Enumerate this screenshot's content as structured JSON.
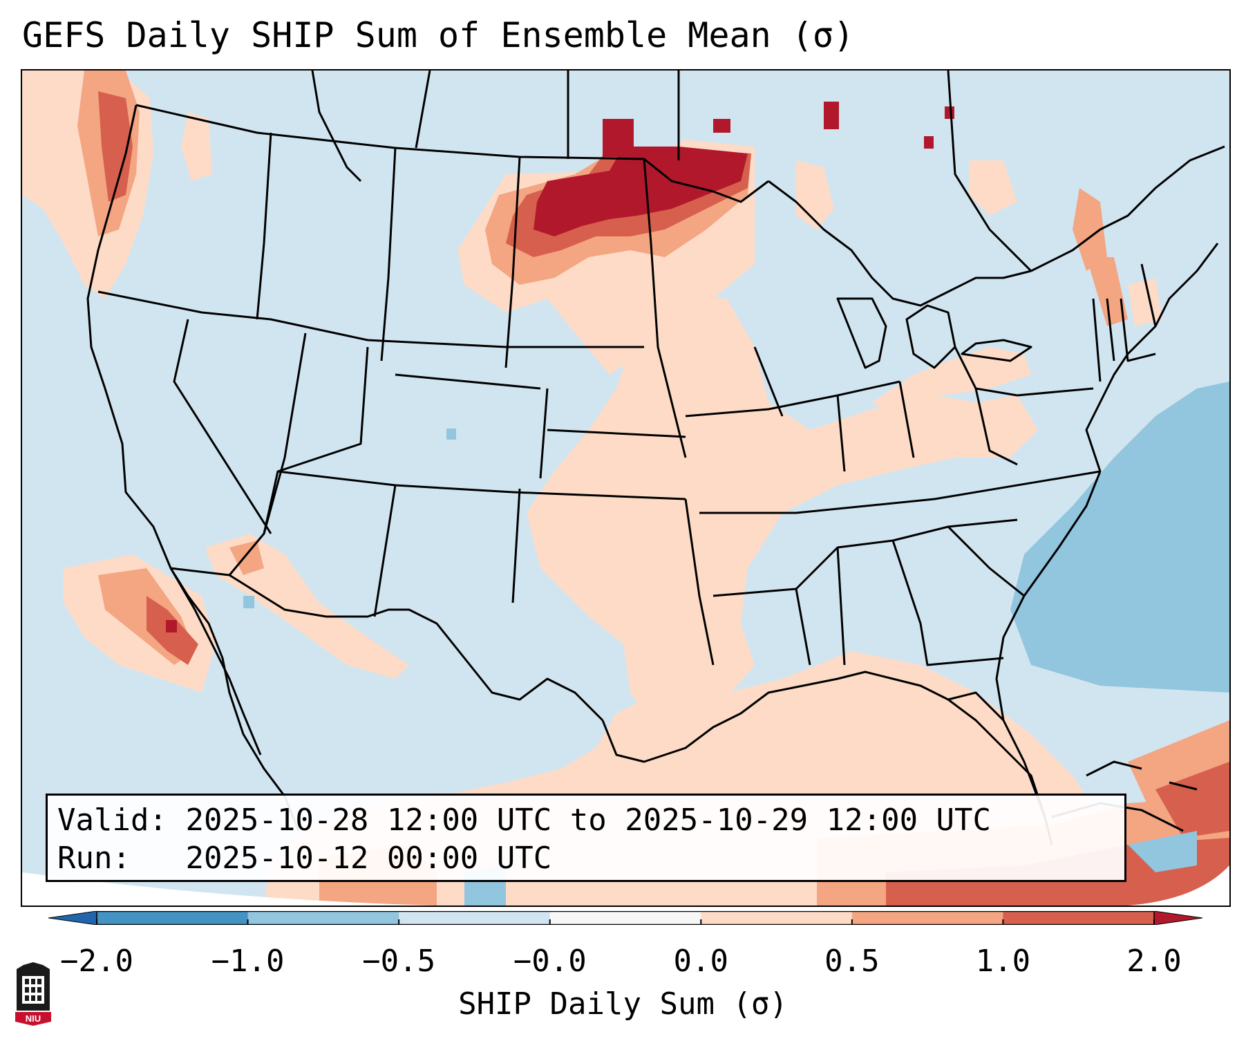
{
  "title": "GEFS Daily SHIP Sum of Ensemble Mean (σ)",
  "info": {
    "valid_label": "Valid:",
    "valid_value": "2025-10-28 12:00 UTC to 2025-10-29 12:00 UTC",
    "run_label": "Run:",
    "run_value": "2025-10-12 00:00 UTC"
  },
  "colorbar": {
    "label": "SHIP Daily Sum (σ)",
    "ticks": [
      "−2.0",
      "−1.0",
      "−0.5",
      "−0.0",
      "0.0",
      "0.5",
      "1.0",
      "2.0"
    ],
    "bin_colors": [
      "#4393c3",
      "#92c5de",
      "#d1e5f0",
      "#f7f7f7",
      "#fddbc7",
      "#f4a582",
      "#d6604d",
      "#b2182b"
    ],
    "under_color": "#2166ac",
    "over_color": "#b2182b",
    "extend": "both"
  },
  "logo": {
    "text": "NIU"
  }
}
